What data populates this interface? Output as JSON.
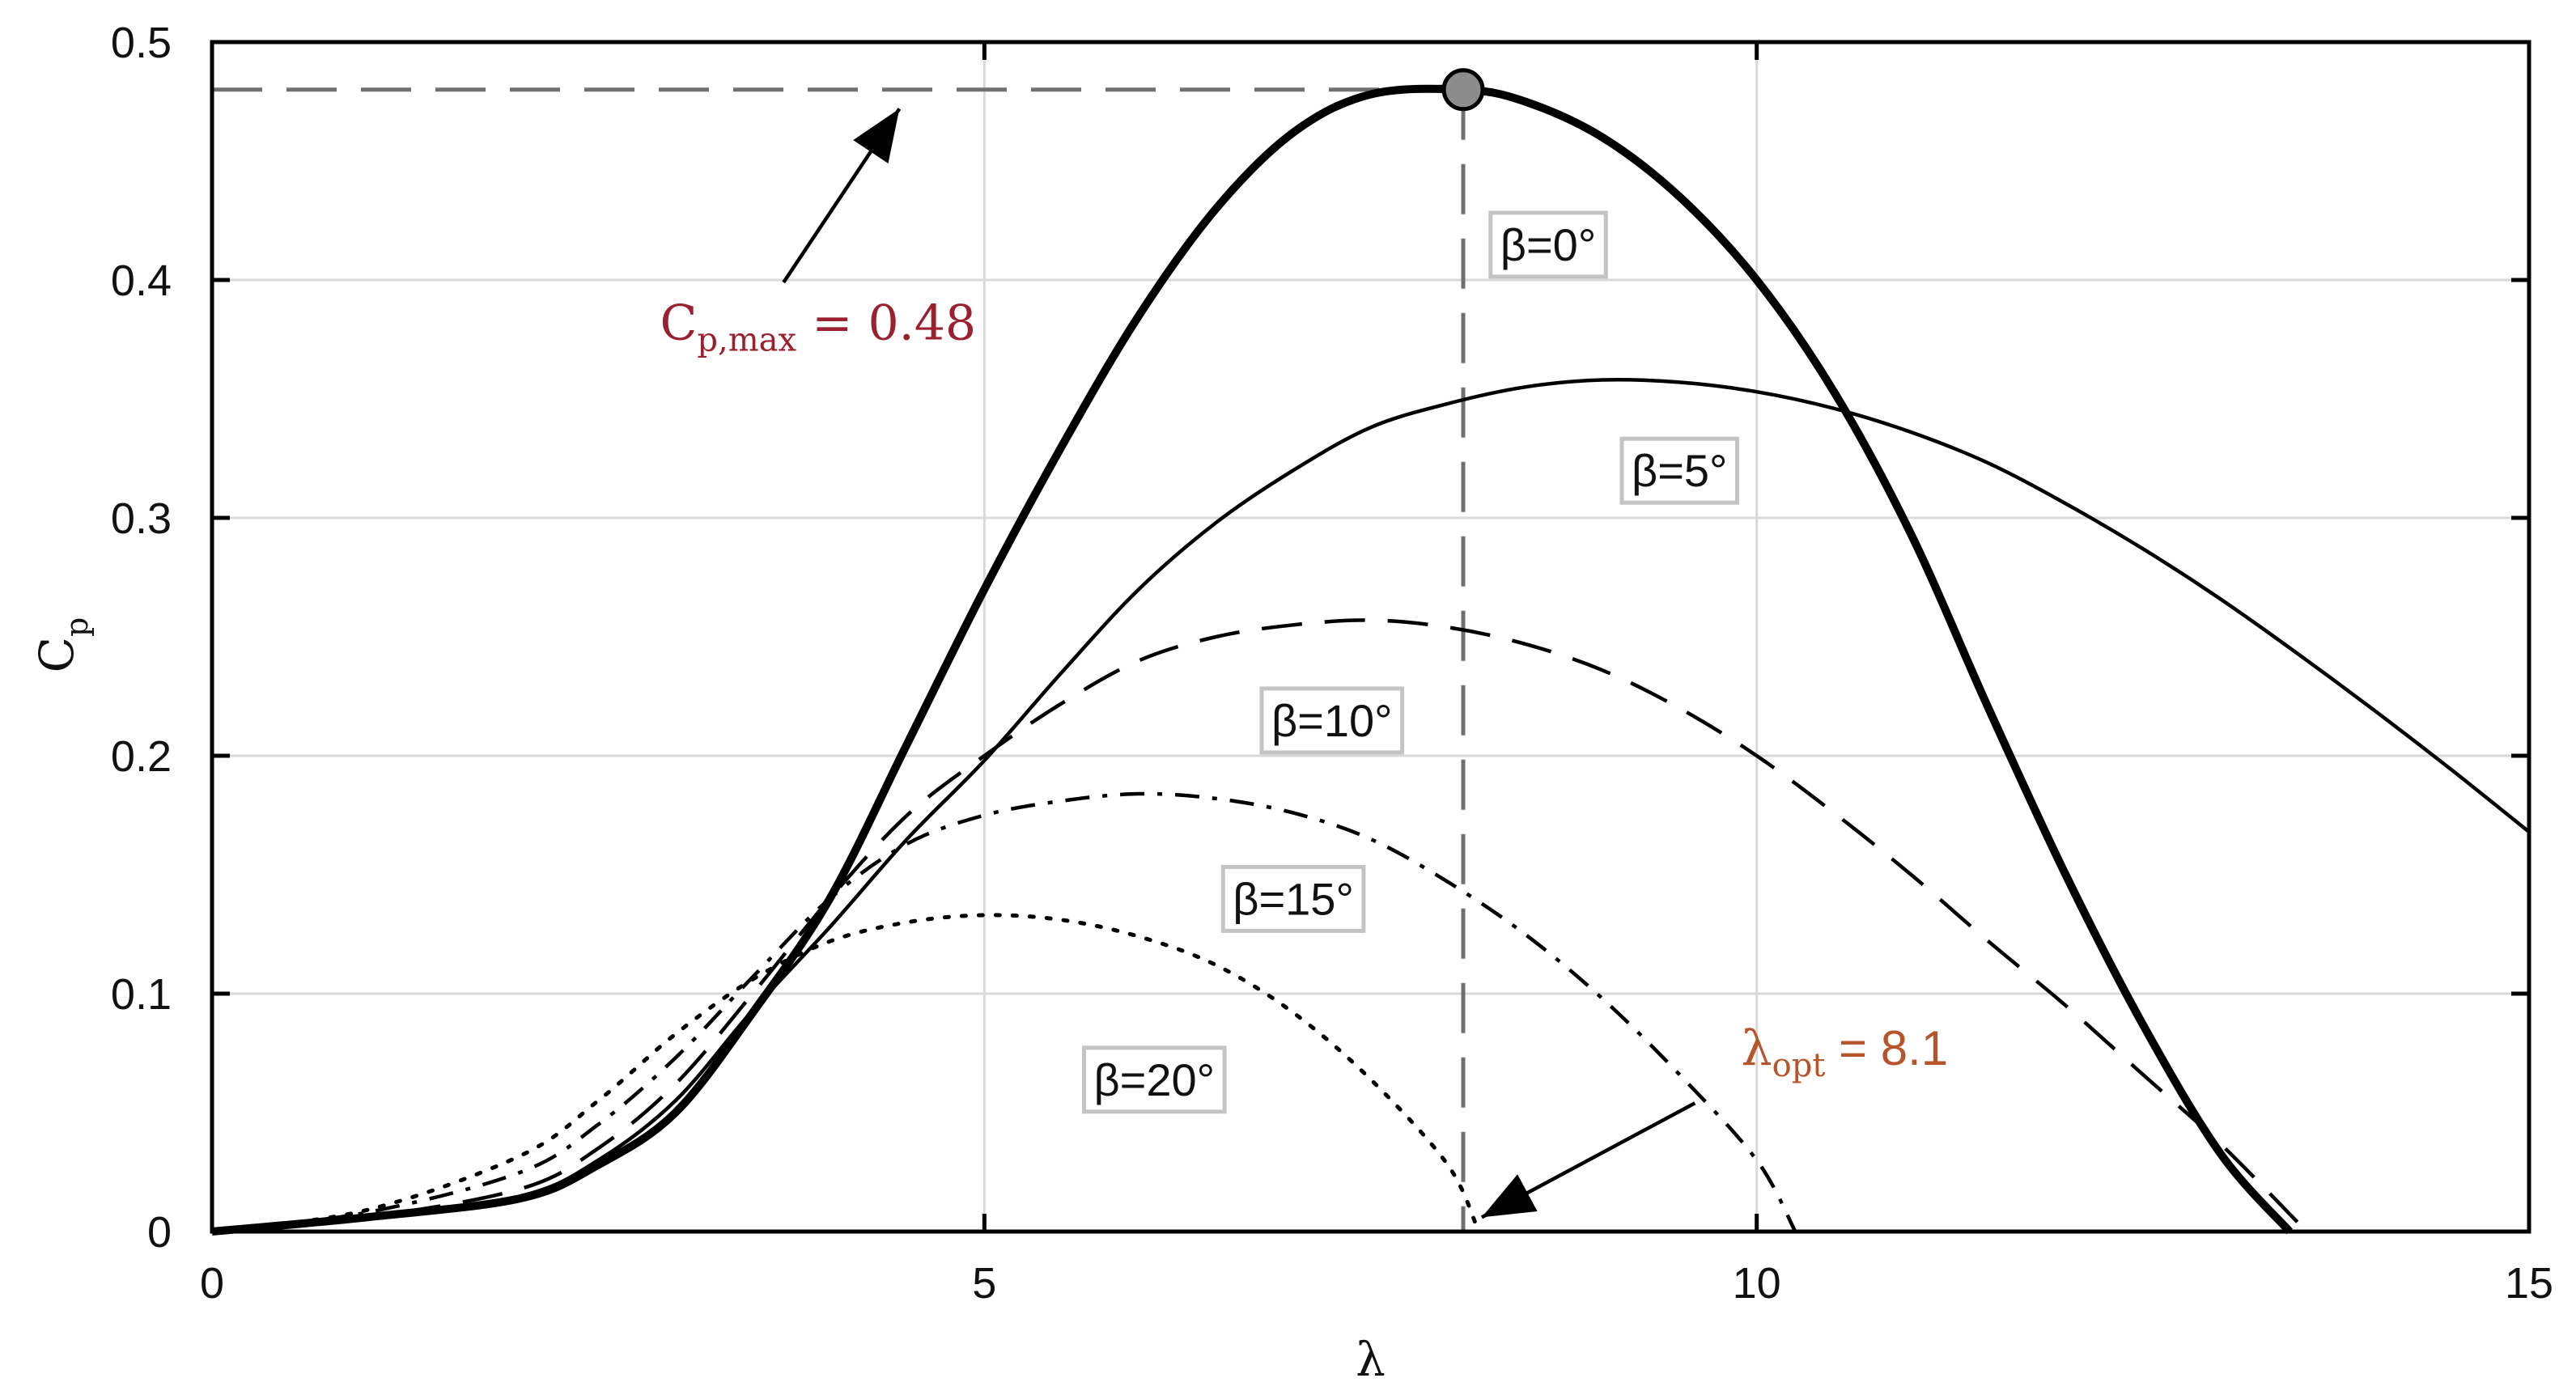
{
  "chart_data": {
    "type": "line",
    "title": "",
    "xlabel": "λ",
    "ylabel": {
      "main": "C",
      "sub": "p"
    },
    "xlim": [
      0,
      15
    ],
    "ylim": [
      0,
      0.5
    ],
    "xticks": [
      "0",
      "5",
      "10",
      "15"
    ],
    "yticks": [
      "0",
      "0.1",
      "0.2",
      "0.3",
      "0.4",
      "0.5"
    ],
    "grid": true,
    "legend": "none",
    "series": [
      {
        "label": "β=0°",
        "line": "solid-thick",
        "points": [
          [
            0,
            0
          ],
          [
            1,
            0.006
          ],
          [
            2,
            0.014
          ],
          [
            2.5,
            0.028
          ],
          [
            3,
            0.05
          ],
          [
            3.5,
            0.092
          ],
          [
            4,
            0.14
          ],
          [
            4.5,
            0.205
          ],
          [
            5,
            0.27
          ],
          [
            5.5,
            0.33
          ],
          [
            6,
            0.385
          ],
          [
            6.5,
            0.43
          ],
          [
            7,
            0.462
          ],
          [
            7.5,
            0.478
          ],
          [
            8.1,
            0.48
          ],
          [
            8.5,
            0.475
          ],
          [
            9,
            0.46
          ],
          [
            9.5,
            0.435
          ],
          [
            10,
            0.4
          ],
          [
            10.5,
            0.353
          ],
          [
            11,
            0.293
          ],
          [
            11.5,
            0.22
          ],
          [
            12,
            0.15
          ],
          [
            12.5,
            0.087
          ],
          [
            13,
            0.033
          ],
          [
            13.45,
            0
          ]
        ]
      },
      {
        "label": "β=5°",
        "line": "solid-thin",
        "points": [
          [
            0,
            0
          ],
          [
            1,
            0.006
          ],
          [
            2,
            0.015
          ],
          [
            2.5,
            0.03
          ],
          [
            3,
            0.055
          ],
          [
            3.5,
            0.093
          ],
          [
            4,
            0.128
          ],
          [
            4.5,
            0.165
          ],
          [
            5,
            0.198
          ],
          [
            5.5,
            0.235
          ],
          [
            6,
            0.27
          ],
          [
            6.5,
            0.298
          ],
          [
            7,
            0.32
          ],
          [
            7.5,
            0.338
          ],
          [
            8,
            0.348
          ],
          [
            8.5,
            0.355
          ],
          [
            9,
            0.358
          ],
          [
            9.5,
            0.357
          ],
          [
            10,
            0.353
          ],
          [
            10.5,
            0.346
          ],
          [
            11,
            0.336
          ],
          [
            11.5,
            0.323
          ],
          [
            12,
            0.306
          ],
          [
            12.5,
            0.287
          ],
          [
            13,
            0.266
          ],
          [
            13.5,
            0.243
          ],
          [
            14,
            0.219
          ],
          [
            14.5,
            0.194
          ],
          [
            15,
            0.168
          ]
        ]
      },
      {
        "label": "β=10°",
        "line": "dashed",
        "points": [
          [
            0,
            0
          ],
          [
            1,
            0.006
          ],
          [
            2,
            0.018
          ],
          [
            2.5,
            0.035
          ],
          [
            3,
            0.062
          ],
          [
            3.5,
            0.1
          ],
          [
            4,
            0.14
          ],
          [
            4.5,
            0.175
          ],
          [
            5,
            0.2
          ],
          [
            5.5,
            0.222
          ],
          [
            6,
            0.24
          ],
          [
            6.5,
            0.25
          ],
          [
            7,
            0.255
          ],
          [
            7.5,
            0.257
          ],
          [
            8,
            0.254
          ],
          [
            8.5,
            0.247
          ],
          [
            9,
            0.236
          ],
          [
            9.5,
            0.22
          ],
          [
            10,
            0.2
          ],
          [
            10.5,
            0.176
          ],
          [
            11,
            0.15
          ],
          [
            11.5,
            0.122
          ],
          [
            12,
            0.095
          ],
          [
            12.5,
            0.066
          ],
          [
            13,
            0.037
          ],
          [
            13.5,
            0.004
          ]
        ]
      },
      {
        "label": "β=15°",
        "line": "dash-dot",
        "points": [
          [
            0,
            0
          ],
          [
            1,
            0.008
          ],
          [
            2,
            0.025
          ],
          [
            2.5,
            0.045
          ],
          [
            3,
            0.073
          ],
          [
            3.5,
            0.107
          ],
          [
            4,
            0.14
          ],
          [
            4.5,
            0.163
          ],
          [
            5,
            0.175
          ],
          [
            5.5,
            0.181
          ],
          [
            6,
            0.184
          ],
          [
            6.5,
            0.182
          ],
          [
            7,
            0.176
          ],
          [
            7.5,
            0.165
          ],
          [
            8,
            0.147
          ],
          [
            8.5,
            0.125
          ],
          [
            9,
            0.098
          ],
          [
            9.5,
            0.066
          ],
          [
            10,
            0.03
          ],
          [
            10.25,
            0
          ]
        ]
      },
      {
        "label": "β=20°",
        "line": "dotted",
        "points": [
          [
            0,
            0
          ],
          [
            1,
            0.009
          ],
          [
            2,
            0.032
          ],
          [
            2.5,
            0.055
          ],
          [
            3,
            0.083
          ],
          [
            3.5,
            0.106
          ],
          [
            4,
            0.122
          ],
          [
            4.5,
            0.13
          ],
          [
            5,
            0.133
          ],
          [
            5.5,
            0.131
          ],
          [
            6,
            0.124
          ],
          [
            6.5,
            0.112
          ],
          [
            7,
            0.092
          ],
          [
            7.5,
            0.064
          ],
          [
            8,
            0.028
          ],
          [
            8.2,
            0
          ]
        ]
      }
    ],
    "annotations": {
      "cpmax": {
        "main": "C",
        "sub": "p,max",
        "value": " = 0.48"
      },
      "lambda_opt": {
        "main": "λ",
        "sub": "opt",
        "value": " = 8.1"
      },
      "optimum_point": [
        8.1,
        0.48
      ]
    },
    "colors": {
      "curve": "#000000",
      "grid": "#d9d9d9",
      "guide": "#707070",
      "marker": "#8c8c8c",
      "label_box": "#c4c4c4"
    }
  }
}
